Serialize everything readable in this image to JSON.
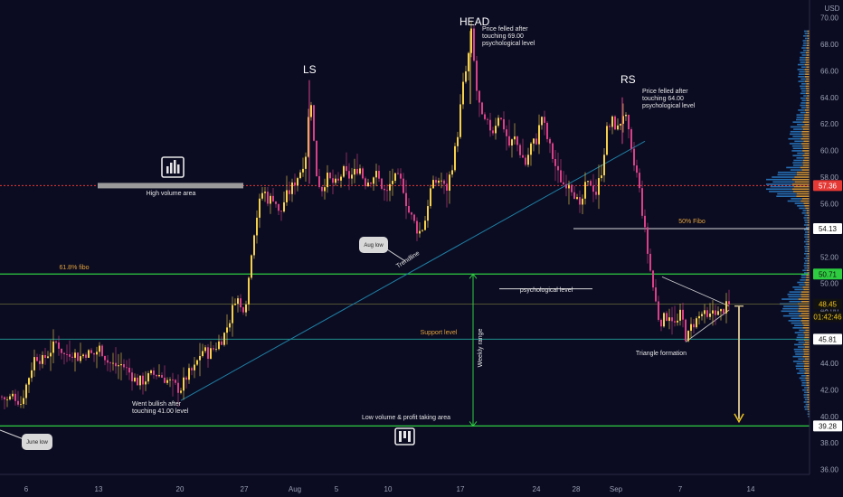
{
  "chart_data": {
    "type": "candlestick",
    "currency_label": "USD",
    "y_ticks": [
      "70.00",
      "68.00",
      "66.00",
      "64.00",
      "62.00",
      "60.00",
      "58.00",
      "56.00",
      "54.00",
      "52.00",
      "50.00",
      "48.00",
      "46.00",
      "44.00",
      "42.00",
      "40.00",
      "38.00",
      "36.00"
    ],
    "y_range": [
      35,
      71
    ],
    "x_ticks": [
      "6",
      "13",
      "20",
      "27",
      "Aug",
      "5",
      "10",
      "17",
      "24",
      "28",
      "Sep",
      "7",
      "14"
    ],
    "price_tags": [
      {
        "value": 57.36,
        "label": "57.36",
        "bg": "#e53935",
        "fg": "#ffffff"
      },
      {
        "value": 54.13,
        "label": "54.13",
        "bg": "#ffffff",
        "fg": "#111111"
      },
      {
        "value": 50.71,
        "label": "50.71",
        "bg": "#2ecc40",
        "fg": "#111111"
      },
      {
        "value": 48.45,
        "label": "48.45",
        "bg": "#111111",
        "fg": "#f0c419"
      },
      {
        "value": 47.5,
        "label": "01:42:46",
        "bg": "#111111",
        "fg": "#f0c419"
      },
      {
        "value": 45.81,
        "label": "45.81",
        "bg": "#ffffff",
        "fg": "#111111"
      },
      {
        "value": 39.28,
        "label": "39.28",
        "bg": "#ffffff",
        "fg": "#111111"
      }
    ],
    "levels": {
      "high_volume": 57.36,
      "fifty_fibo": 54.13,
      "fib_618": 50.71,
      "psych": 49.6,
      "current": 48.45,
      "support": 45.81,
      "low_volume": 39.28
    },
    "candle_anchors": [
      [
        0,
        41.5
      ],
      [
        7,
        41.2
      ],
      [
        14,
        41.6
      ],
      [
        22,
        41.0
      ],
      [
        30,
        42.8
      ],
      [
        38,
        44.6
      ],
      [
        46,
        44.2
      ],
      [
        54,
        44.9
      ],
      [
        62,
        45.6
      ],
      [
        70,
        44.6
      ],
      [
        78,
        44.9
      ],
      [
        86,
        44.4
      ],
      [
        94,
        44.8
      ],
      [
        102,
        44.6
      ],
      [
        110,
        45.2
      ],
      [
        118,
        44.1
      ],
      [
        126,
        43.8
      ],
      [
        134,
        43.9
      ],
      [
        142,
        43.3
      ],
      [
        150,
        42.6
      ],
      [
        158,
        42.7
      ],
      [
        166,
        43.1
      ],
      [
        174,
        43.2
      ],
      [
        182,
        42.8
      ],
      [
        190,
        42.4
      ],
      [
        198,
        42.0
      ],
      [
        206,
        43.1
      ],
      [
        214,
        43.6
      ],
      [
        222,
        45.0
      ],
      [
        230,
        44.7
      ],
      [
        238,
        45.3
      ],
      [
        246,
        46.0
      ],
      [
        254,
        47.5
      ],
      [
        260,
        49.2
      ],
      [
        266,
        47.9
      ],
      [
        272,
        49.0
      ],
      [
        278,
        53.2
      ],
      [
        284,
        55.5
      ],
      [
        290,
        57.1
      ],
      [
        296,
        56.2
      ],
      [
        302,
        56.6
      ],
      [
        308,
        55.0
      ],
      [
        314,
        56.4
      ],
      [
        320,
        57.0
      ],
      [
        326,
        57.8
      ],
      [
        332,
        58.6
      ],
      [
        338,
        60.0
      ],
      [
        342,
        64.8
      ],
      [
        348,
        58.5
      ],
      [
        354,
        57.0
      ],
      [
        360,
        58.0
      ],
      [
        366,
        57.6
      ],
      [
        372,
        57.4
      ],
      [
        378,
        58.5
      ],
      [
        384,
        58.0
      ],
      [
        390,
        58.2
      ],
      [
        396,
        58.9
      ],
      [
        402,
        57.6
      ],
      [
        408,
        57.8
      ],
      [
        414,
        58.3
      ],
      [
        420,
        57.5
      ],
      [
        426,
        56.6
      ],
      [
        432,
        57.8
      ],
      [
        438,
        57.9
      ],
      [
        444,
        57.5
      ],
      [
        450,
        55.5
      ],
      [
        456,
        54.7
      ],
      [
        462,
        53.8
      ],
      [
        468,
        54.4
      ],
      [
        474,
        56.9
      ],
      [
        480,
        57.6
      ],
      [
        486,
        57.9
      ],
      [
        492,
        56.9
      ],
      [
        498,
        58.6
      ],
      [
        504,
        60.7
      ],
      [
        510,
        64.5
      ],
      [
        516,
        66.6
      ],
      [
        520,
        68.8
      ],
      [
        526,
        64.5
      ],
      [
        532,
        62.3
      ],
      [
        538,
        61.9
      ],
      [
        544,
        61.5
      ],
      [
        550,
        62.7
      ],
      [
        556,
        61.8
      ],
      [
        562,
        60.4
      ],
      [
        568,
        60.9
      ],
      [
        574,
        59.9
      ],
      [
        580,
        59.0
      ],
      [
        586,
        60.4
      ],
      [
        592,
        60.8
      ],
      [
        598,
        62.6
      ],
      [
        604,
        60.9
      ],
      [
        610,
        59.5
      ],
      [
        616,
        58.2
      ],
      [
        622,
        57.5
      ],
      [
        628,
        57.7
      ],
      [
        634,
        56.8
      ],
      [
        640,
        55.5
      ],
      [
        646,
        57.2
      ],
      [
        652,
        57.6
      ],
      [
        658,
        56.8
      ],
      [
        664,
        58.5
      ],
      [
        670,
        61.5
      ],
      [
        676,
        62.2
      ],
      [
        682,
        61.6
      ],
      [
        688,
        62.8
      ],
      [
        692,
        62.1
      ],
      [
        698,
        59.3
      ],
      [
        704,
        58.0
      ],
      [
        710,
        54.9
      ],
      [
        716,
        51.8
      ],
      [
        722,
        49.3
      ],
      [
        728,
        47.1
      ],
      [
        734,
        47.4
      ],
      [
        740,
        47.8
      ],
      [
        746,
        46.7
      ],
      [
        752,
        47.8
      ],
      [
        758,
        45.7
      ],
      [
        764,
        46.9
      ],
      [
        770,
        47.3
      ],
      [
        776,
        47.8
      ],
      [
        782,
        47.1
      ],
      [
        788,
        48.2
      ],
      [
        794,
        47.6
      ],
      [
        800,
        48.2
      ],
      [
        806,
        48.3
      ]
    ],
    "annotations": {
      "head": "HEAD",
      "ls": "LS",
      "rs": "RS",
      "head_note": [
        "Price felled after",
        "touching 69.00",
        "psychological level"
      ],
      "rs_note": [
        "Price felled after",
        "touching 64.00",
        "psychological level"
      ],
      "high_volume_area": "High volume area",
      "fibo_50": "50% Fibo",
      "fibo_618": "61.8% fibo",
      "psych_level": "psychological level",
      "support_level": "Support level",
      "weekly_range": "Weekly range",
      "triangle": "Triangle formation",
      "trendline": "Trendline",
      "went_bullish": [
        "Went bullish after",
        "touching 41.00 level"
      ],
      "low_volume": "Low volume & profit taking area",
      "aug_low": "Aug low",
      "june_low": "June low"
    },
    "colors": {
      "background": "#0b0c22",
      "bull": "#f5d04a",
      "bear": "#d9408a",
      "green_line": "#2ecc40",
      "red_line": "#e53935",
      "trend": "#1f7fa3",
      "volume_up": "#2979c2",
      "volume_down": "#e3a23a"
    }
  }
}
